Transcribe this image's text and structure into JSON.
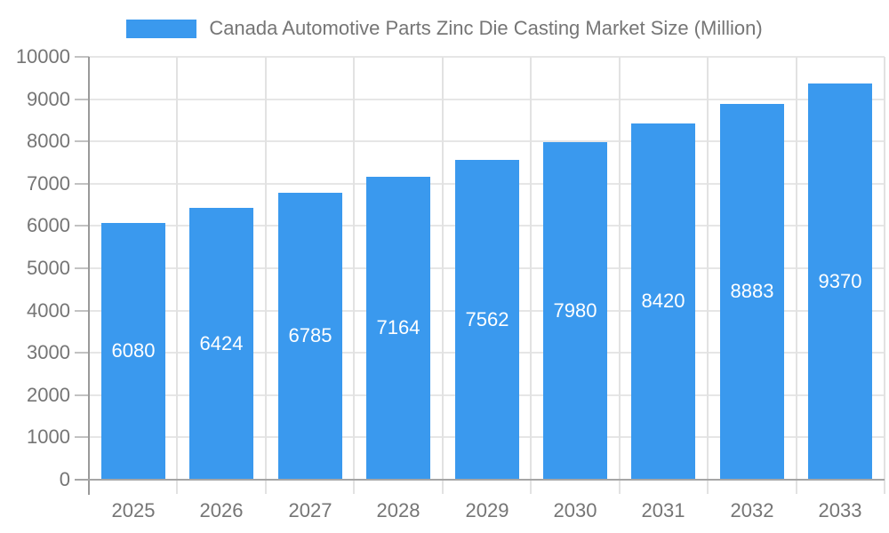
{
  "legend": {
    "label": "Canada Automotive Parts Zinc Die Casting Market Size (Million)",
    "swatch_color": "#3a99ee"
  },
  "chart_data": {
    "type": "bar",
    "title": "Canada Automotive Parts Zinc Die Casting Market Size (Million)",
    "series_name": "Canada Automotive Parts Zinc Die Casting Market Size (Million)",
    "categories": [
      "2025",
      "2026",
      "2027",
      "2028",
      "2029",
      "2030",
      "2031",
      "2032",
      "2033"
    ],
    "values": [
      6080,
      6424,
      6785,
      7164,
      7562,
      7980,
      8420,
      8883,
      9370
    ],
    "value_labels": [
      "6080",
      "6424",
      "6785",
      "7164",
      "7562",
      "7980",
      "8420",
      "8883",
      "9370"
    ],
    "xlabel": "",
    "ylabel": "",
    "ylim": [
      0,
      10000
    ],
    "ytick_interval": 1000,
    "ytick_labels": [
      "0",
      "1000",
      "2000",
      "3000",
      "4000",
      "5000",
      "6000",
      "7000",
      "8000",
      "9000",
      "10000"
    ],
    "grid": true,
    "legend_position": "top",
    "bar_color": "#3a99ee",
    "value_label_color": "#ffffff",
    "axis_text_color": "#757575"
  }
}
